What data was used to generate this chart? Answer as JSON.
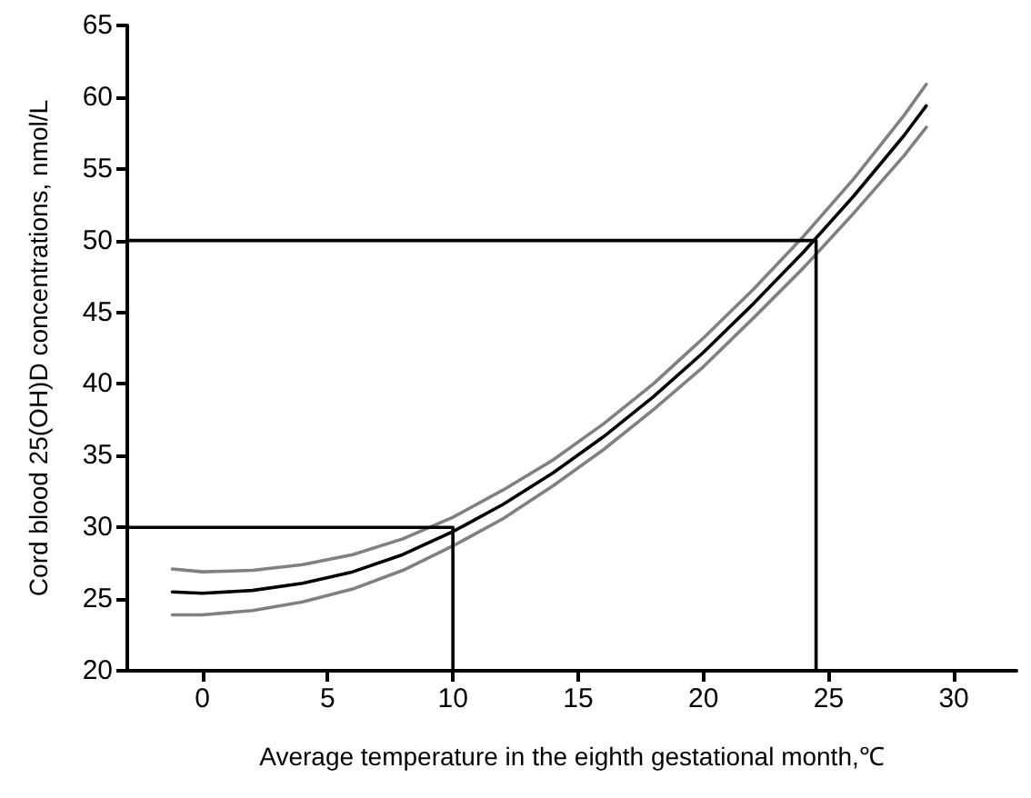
{
  "chart_data": {
    "type": "line",
    "xlabel": "Average temperature in the eighth gestational month,℃",
    "ylabel": "Cord blood 25(OH)D concentrations, nmol/L",
    "xlim": [
      -3,
      32.5
    ],
    "xticks": [
      0,
      5,
      10,
      15,
      20,
      25,
      30
    ],
    "ylim": [
      20,
      65
    ],
    "yticks": [
      20,
      25,
      30,
      35,
      40,
      45,
      50,
      55,
      60,
      65
    ],
    "grid": false,
    "marker": "none",
    "line_style": "solid",
    "series": [
      {
        "color": "#000000",
        "x": [
          -1.2,
          0,
          2,
          4,
          6,
          8,
          10,
          12,
          14,
          16,
          18,
          20,
          22,
          24,
          26,
          28,
          28.9
        ],
        "values": [
          25.5,
          25.4,
          25.6,
          26.1,
          26.9,
          28.1,
          29.7,
          31.6,
          33.8,
          36.3,
          39.1,
          42.2,
          45.6,
          49.2,
          53.1,
          57.3,
          59.4
        ]
      },
      {
        "color": "#808080",
        "x": [
          -1.2,
          0,
          2,
          4,
          6,
          8,
          10,
          12,
          14,
          16,
          18,
          20,
          22,
          24,
          26,
          28,
          28.9
        ],
        "values": [
          23.9,
          23.9,
          24.2,
          24.8,
          25.7,
          27.0,
          28.7,
          30.6,
          32.9,
          35.4,
          38.2,
          41.2,
          44.6,
          48.1,
          51.9,
          55.9,
          57.9
        ]
      },
      {
        "color": "#808080",
        "x": [
          -1.2,
          0,
          2,
          4,
          6,
          8,
          10,
          12,
          14,
          16,
          18,
          20,
          22,
          24,
          26,
          28,
          28.9
        ],
        "values": [
          27.1,
          26.9,
          27.0,
          27.4,
          28.1,
          29.2,
          30.7,
          32.6,
          34.7,
          37.2,
          40.0,
          43.2,
          46.6,
          50.3,
          54.3,
          58.7,
          60.9
        ]
      },
      {
        "color": "#000000",
        "x": [
          -3,
          10,
          10
        ],
        "values": [
          30,
          30,
          20
        ]
      },
      {
        "color": "#000000",
        "x": [
          -3,
          24.5,
          24.5
        ],
        "values": [
          50,
          50,
          20
        ]
      }
    ]
  }
}
